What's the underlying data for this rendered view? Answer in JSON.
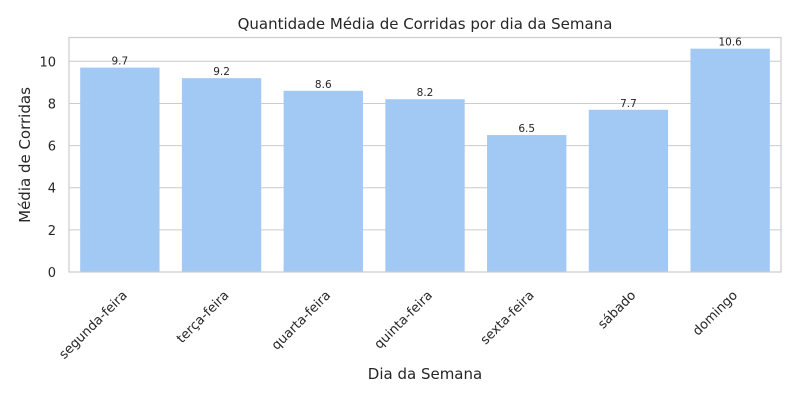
{
  "chart_data": {
    "type": "bar",
    "title": "Quantidade Média de Corridas por dia da Semana",
    "xlabel": "Dia da Semana",
    "ylabel": "Média de Corridas",
    "categories": [
      "segunda-feira",
      "terça-feira",
      "quarta-feira",
      "quinta-feira",
      "sexta-feira",
      "sábado",
      "domingo"
    ],
    "values": [
      9.7,
      9.2,
      8.6,
      8.2,
      6.5,
      7.7,
      10.6
    ],
    "value_labels": [
      "9.7",
      "9.2",
      "8.6",
      "8.2",
      "6.5",
      "7.7",
      "10.6"
    ],
    "ylim": [
      0,
      11.13
    ],
    "yticks": [
      0,
      2,
      4,
      6,
      8,
      10
    ],
    "grid": "horizontal",
    "bar_color": "#a1c9f4",
    "x_tick_rotation": 45
  }
}
